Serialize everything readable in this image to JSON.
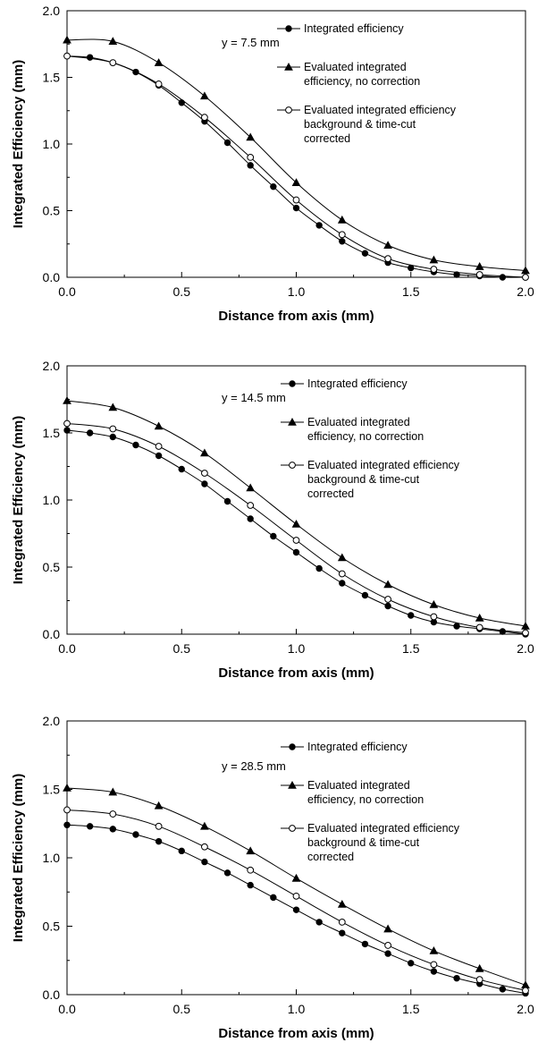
{
  "chart_data": [
    {
      "type": "line",
      "annotation": "y = 7.5 mm",
      "xlabel": "Distance from axis (mm)",
      "ylabel": "Integrated Efficiency (mm)",
      "xlim": [
        0,
        2
      ],
      "ylim": [
        0,
        2
      ],
      "xticks": [
        "0.0",
        "0.5",
        "1.0",
        "1.5",
        "2.0"
      ],
      "yticks": [
        "0.0",
        "0.5",
        "1.0",
        "1.5",
        "2.0"
      ],
      "legend_position": "top-right",
      "series": [
        {
          "name": "Integrated efficiency",
          "marker": "filled-circle",
          "x": [
            0,
            0.1,
            0.2,
            0.3,
            0.4,
            0.5,
            0.6,
            0.7,
            0.8,
            0.9,
            1.0,
            1.1,
            1.2,
            1.3,
            1.4,
            1.5,
            1.6,
            1.7,
            1.8,
            1.9,
            2.0
          ],
          "y": [
            1.66,
            1.65,
            1.61,
            1.54,
            1.44,
            1.31,
            1.17,
            1.01,
            0.84,
            0.68,
            0.52,
            0.39,
            0.27,
            0.18,
            0.11,
            0.07,
            0.04,
            0.02,
            0.01,
            0.0,
            0.0
          ]
        },
        {
          "name": "Evaluated integrated efficiency, no correction",
          "legend_lines": [
            "Evaluated integrated",
            "efficiency, no correction"
          ],
          "marker": "filled-triangle",
          "x": [
            0,
            0.2,
            0.4,
            0.6,
            0.8,
            1.0,
            1.2,
            1.4,
            1.6,
            1.8,
            2.0
          ],
          "y": [
            1.78,
            1.77,
            1.61,
            1.36,
            1.05,
            0.71,
            0.43,
            0.24,
            0.13,
            0.08,
            0.05
          ]
        },
        {
          "name": "Evaluated integrated efficiency background & time-cut corrected",
          "legend_lines": [
            "Evaluated integrated efficiency",
            "background & time-cut",
            "corrected"
          ],
          "marker": "open-circle",
          "x": [
            0,
            0.2,
            0.4,
            0.6,
            0.8,
            1.0,
            1.2,
            1.4,
            1.6,
            1.8,
            2.0
          ],
          "y": [
            1.66,
            1.61,
            1.45,
            1.2,
            0.9,
            0.58,
            0.32,
            0.14,
            0.06,
            0.02,
            0.0
          ]
        }
      ]
    },
    {
      "type": "line",
      "annotation": "y = 14.5 mm",
      "xlabel": "Distance from axis (mm)",
      "ylabel": "Integrated Efficiency (mm)",
      "xlim": [
        0,
        2
      ],
      "ylim": [
        0,
        2
      ],
      "xticks": [
        "0.0",
        "0.5",
        "1.0",
        "1.5",
        "2.0"
      ],
      "yticks": [
        "0.0",
        "0.5",
        "1.0",
        "1.5",
        "2.0"
      ],
      "legend_position": "top-right",
      "series": [
        {
          "name": "Integrated efficiency",
          "marker": "filled-circle",
          "x": [
            0,
            0.1,
            0.2,
            0.3,
            0.4,
            0.5,
            0.6,
            0.7,
            0.8,
            0.9,
            1.0,
            1.1,
            1.2,
            1.3,
            1.4,
            1.5,
            1.6,
            1.7,
            1.8,
            1.9,
            2.0
          ],
          "y": [
            1.52,
            1.5,
            1.47,
            1.41,
            1.33,
            1.23,
            1.12,
            0.99,
            0.86,
            0.73,
            0.61,
            0.49,
            0.38,
            0.29,
            0.21,
            0.14,
            0.09,
            0.06,
            0.04,
            0.02,
            0.0
          ]
        },
        {
          "name": "Evaluated integrated efficiency, no correction",
          "legend_lines": [
            "Evaluated integrated",
            "efficiency, no correction"
          ],
          "marker": "filled-triangle",
          "x": [
            0,
            0.2,
            0.4,
            0.6,
            0.8,
            1.0,
            1.2,
            1.4,
            1.6,
            1.8,
            2.0
          ],
          "y": [
            1.74,
            1.69,
            1.55,
            1.35,
            1.09,
            0.82,
            0.57,
            0.37,
            0.22,
            0.12,
            0.06
          ]
        },
        {
          "name": "Evaluated integrated efficiency background & time-cut corrected",
          "legend_lines": [
            "Evaluated integrated efficiency",
            "background & time-cut",
            "corrected"
          ],
          "marker": "open-circle",
          "x": [
            0,
            0.2,
            0.4,
            0.6,
            0.8,
            1.0,
            1.2,
            1.4,
            1.6,
            1.8,
            2.0
          ],
          "y": [
            1.57,
            1.53,
            1.4,
            1.2,
            0.96,
            0.7,
            0.45,
            0.26,
            0.13,
            0.05,
            0.01
          ]
        }
      ]
    },
    {
      "type": "line",
      "annotation": "y = 28.5 mm",
      "xlabel": "Distance from axis (mm)",
      "ylabel": "Integrated Efficiency (mm)",
      "xlim": [
        0,
        2
      ],
      "ylim": [
        0,
        2
      ],
      "xticks": [
        "0.0",
        "0.5",
        "1.0",
        "1.5",
        "2.0"
      ],
      "yticks": [
        "0.0",
        "0.5",
        "1.0",
        "1.5",
        "2.0"
      ],
      "legend_position": "top-right",
      "series": [
        {
          "name": "Integrated efficiency",
          "marker": "filled-circle",
          "x": [
            0,
            0.1,
            0.2,
            0.3,
            0.4,
            0.5,
            0.6,
            0.7,
            0.8,
            0.9,
            1.0,
            1.1,
            1.2,
            1.3,
            1.4,
            1.5,
            1.6,
            1.7,
            1.8,
            1.9,
            2.0
          ],
          "y": [
            1.24,
            1.23,
            1.21,
            1.17,
            1.12,
            1.05,
            0.97,
            0.89,
            0.8,
            0.71,
            0.62,
            0.53,
            0.45,
            0.37,
            0.3,
            0.23,
            0.17,
            0.12,
            0.08,
            0.04,
            0.01
          ]
        },
        {
          "name": "Evaluated integrated efficiency, no correction",
          "legend_lines": [
            "Evaluated integrated",
            "efficiency, no correction"
          ],
          "marker": "filled-triangle",
          "x": [
            0,
            0.2,
            0.4,
            0.6,
            0.8,
            1.0,
            1.2,
            1.4,
            1.6,
            1.8,
            2.0
          ],
          "y": [
            1.51,
            1.48,
            1.38,
            1.23,
            1.05,
            0.85,
            0.66,
            0.48,
            0.32,
            0.19,
            0.07
          ]
        },
        {
          "name": "Evaluated integrated efficiency background & time-cut corrected",
          "legend_lines": [
            "Evaluated integrated efficiency",
            "background & time-cut",
            "corrected"
          ],
          "marker": "open-circle",
          "x": [
            0,
            0.2,
            0.4,
            0.6,
            0.8,
            1.0,
            1.2,
            1.4,
            1.6,
            1.8,
            2.0
          ],
          "y": [
            1.35,
            1.32,
            1.23,
            1.08,
            0.91,
            0.72,
            0.53,
            0.36,
            0.22,
            0.11,
            0.03
          ]
        }
      ]
    }
  ]
}
